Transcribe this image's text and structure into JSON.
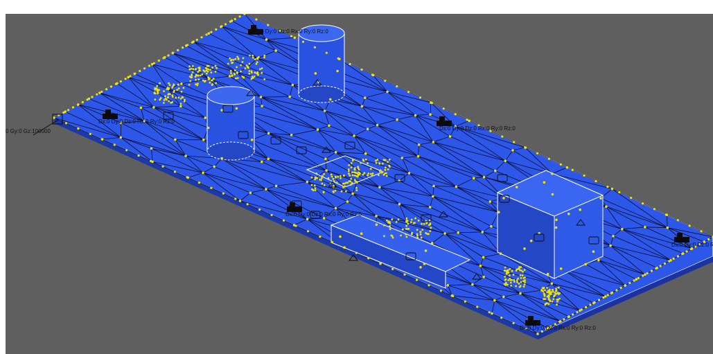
{
  "viewport": {
    "background": "#5f5f5f",
    "mesh_color": "#2c57e8",
    "mesh_dark": "#2347c4",
    "edge_color": "#0b0b2a",
    "node_color": "#f2e200"
  },
  "gravity_label": "0 Gy:0 Gz:100000",
  "boundary_conditions": [
    {
      "id": "bc-1",
      "text": "Dx:0 Dy:0 Dz:0 Rx:0 Ry:0 Rz:0"
    },
    {
      "id": "bc-2",
      "text": "Dx:0 Dy:0 Dz:0 Rx:0 Ry:0 Rz:0"
    },
    {
      "id": "bc-3",
      "text": "Dx:0 Dy:0 Dz:0 Rx:0 Ry:0 Rz:0"
    },
    {
      "id": "bc-4",
      "text": "Dx:0 Dy:0 Dz:0 Rx:0 Ry:0 Rz:0"
    },
    {
      "id": "bc-5",
      "text": "Dx:0 Dy:0 Dz:0 Rx:0 Ry:0 Rz:0"
    },
    {
      "id": "bc-6",
      "text": "Dx:0 Dy:0 Dz:0 Rx:0 Ry:0 Rz:0"
    }
  ],
  "icons": {
    "support": "support-triangle-icon",
    "mass": "mass-point-icon",
    "load": "load-arrow-icon"
  }
}
